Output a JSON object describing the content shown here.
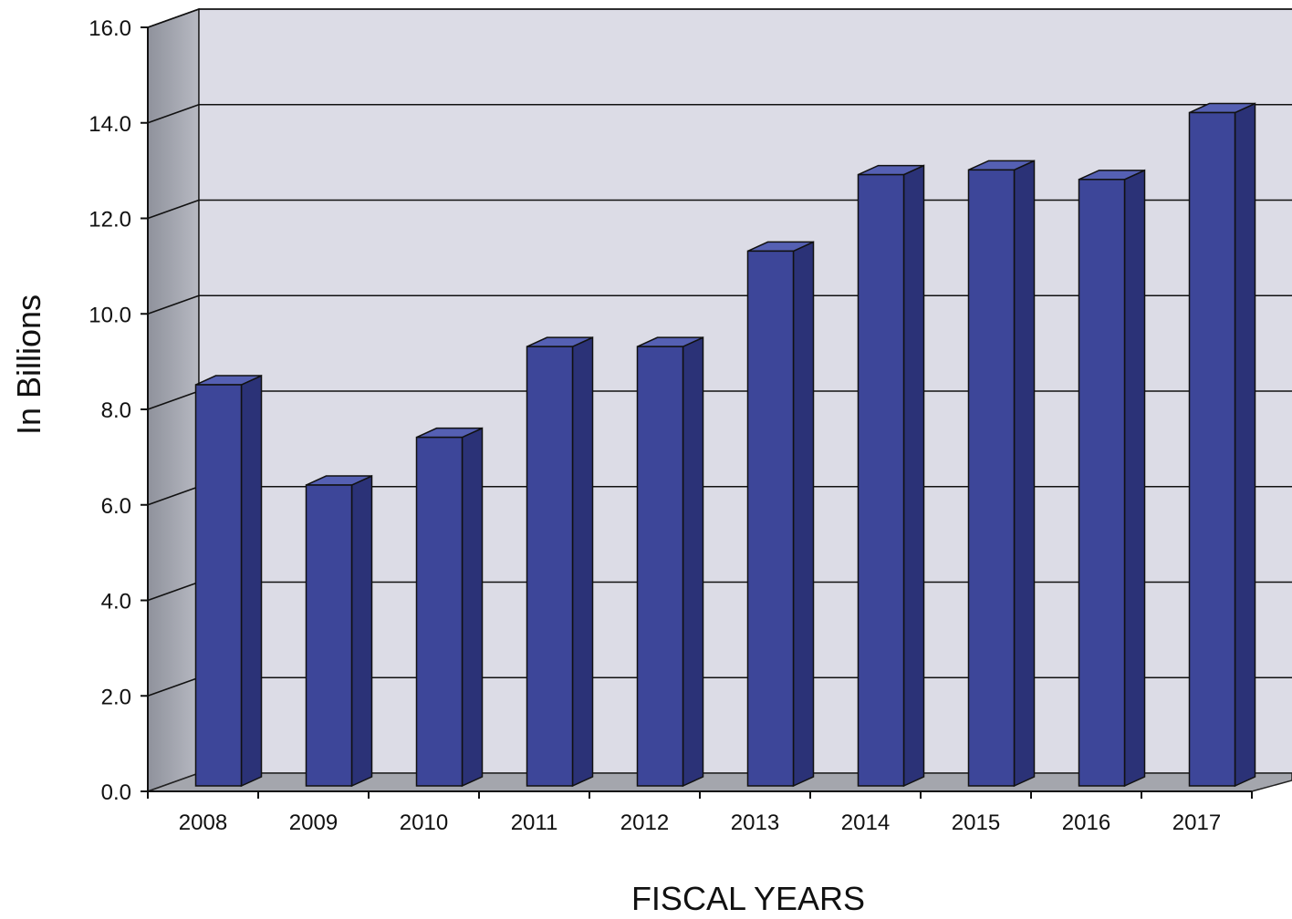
{
  "chart_data": {
    "type": "bar",
    "style": "3d",
    "title": "",
    "xlabel": "FISCAL YEARS",
    "ylabel": "In Billions",
    "ylim": [
      0,
      16
    ],
    "yticks": [
      "0.0",
      "2.0",
      "4.0",
      "6.0",
      "8.0",
      "10.0",
      "12.0",
      "14.0",
      "16.0"
    ],
    "grid": true,
    "legend": "none",
    "categories": [
      "2008",
      "2009",
      "2010",
      "2011",
      "2012",
      "2013",
      "2014",
      "2015",
      "2016",
      "2017"
    ],
    "values": [
      8.4,
      6.3,
      7.3,
      9.2,
      9.2,
      11.2,
      12.8,
      12.9,
      12.7,
      14.1
    ],
    "colors": {
      "bar_front": "#3d4699",
      "bar_side": "#2b3277",
      "bar_top": "#5560b3",
      "wall": "#dcdce6",
      "side_wall": "#a0a3ad",
      "floor": "#a4a6ad"
    }
  }
}
